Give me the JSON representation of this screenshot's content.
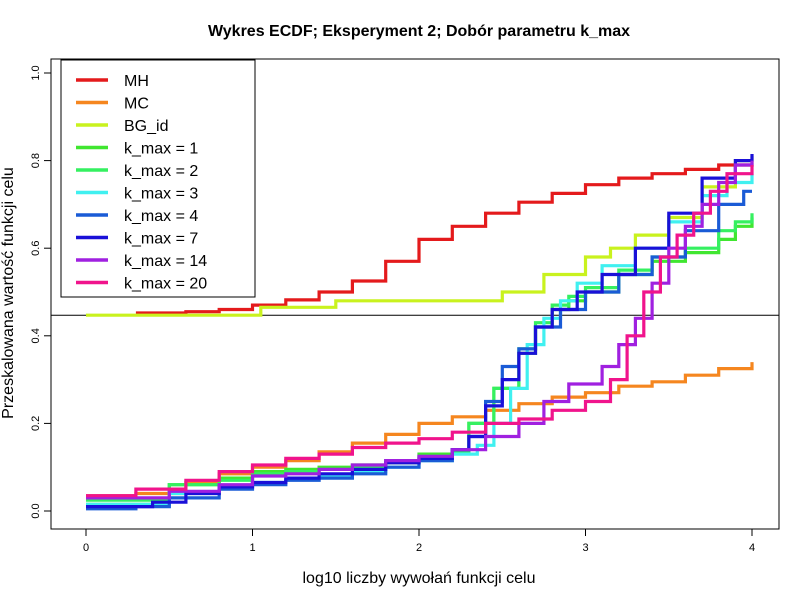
{
  "chart_data": {
    "type": "line",
    "step": true,
    "title": "Wykres ECDF; Eksperyment 2; Dobór parametru k_max",
    "xlabel": "log10 liczby wywołań funkcji celu",
    "ylabel": "Przeskalowana wartość funkcji celu",
    "xlim": [
      0,
      4
    ],
    "ylim": [
      0,
      1
    ],
    "x_ticks": [
      0,
      1,
      2,
      3,
      4
    ],
    "x_tick_labels": [
      "0",
      "1",
      "2",
      "3",
      "4"
    ],
    "y_ticks": [
      0,
      0.2,
      0.4,
      0.6,
      0.8,
      1
    ],
    "y_tick_labels": [
      "0.0",
      "0.2",
      "0.4",
      "0.6",
      "0.8",
      "1.0"
    ],
    "reference_line": {
      "orientation": "horizontal",
      "y": 0.447,
      "color": "#000000"
    },
    "legend": {
      "position": "top-left"
    },
    "series": [
      {
        "name": "MH",
        "color": "#e41a1c",
        "points": [
          [
            0.3,
            0.452
          ],
          [
            0.6,
            0.455
          ],
          [
            0.8,
            0.46
          ],
          [
            1.0,
            0.47
          ],
          [
            1.2,
            0.482
          ],
          [
            1.4,
            0.5
          ],
          [
            1.6,
            0.525
          ],
          [
            1.8,
            0.57
          ],
          [
            2.0,
            0.62
          ],
          [
            2.2,
            0.65
          ],
          [
            2.4,
            0.68
          ],
          [
            2.6,
            0.705
          ],
          [
            2.8,
            0.725
          ],
          [
            3.0,
            0.745
          ],
          [
            3.2,
            0.76
          ],
          [
            3.4,
            0.77
          ],
          [
            3.6,
            0.78
          ],
          [
            3.8,
            0.79
          ],
          [
            4.0,
            0.795
          ]
        ]
      },
      {
        "name": "MC",
        "color": "#f5861f",
        "points": [
          [
            0.0,
            0.035
          ],
          [
            0.3,
            0.04
          ],
          [
            0.6,
            0.065
          ],
          [
            0.8,
            0.085
          ],
          [
            1.0,
            0.1
          ],
          [
            1.2,
            0.115
          ],
          [
            1.4,
            0.135
          ],
          [
            1.6,
            0.155
          ],
          [
            1.8,
            0.175
          ],
          [
            2.0,
            0.2
          ],
          [
            2.2,
            0.215
          ],
          [
            2.4,
            0.23
          ],
          [
            2.6,
            0.245
          ],
          [
            2.8,
            0.26
          ],
          [
            3.0,
            0.27
          ],
          [
            3.2,
            0.285
          ],
          [
            3.4,
            0.295
          ],
          [
            3.6,
            0.31
          ],
          [
            3.8,
            0.325
          ],
          [
            4.0,
            0.34
          ]
        ]
      },
      {
        "name": "BG_id",
        "color": "#c9f21e",
        "points": [
          [
            0.0,
            0.447
          ],
          [
            1.05,
            0.447
          ],
          [
            1.05,
            0.465
          ],
          [
            1.5,
            0.465
          ],
          [
            1.5,
            0.48
          ],
          [
            2.5,
            0.48
          ],
          [
            2.5,
            0.5
          ],
          [
            2.75,
            0.5
          ],
          [
            2.75,
            0.54
          ],
          [
            3.0,
            0.54
          ],
          [
            3.0,
            0.58
          ],
          [
            3.15,
            0.6
          ],
          [
            3.3,
            0.63
          ],
          [
            3.5,
            0.67
          ],
          [
            3.7,
            0.74
          ],
          [
            3.9,
            0.8
          ],
          [
            4.0,
            0.81
          ]
        ]
      },
      {
        "name": "k_max = 1",
        "color": "#40e630",
        "points": [
          [
            0.0,
            0.015
          ],
          [
            0.5,
            0.06
          ],
          [
            0.8,
            0.075
          ],
          [
            1.0,
            0.09
          ],
          [
            1.2,
            0.095
          ],
          [
            1.4,
            0.1
          ],
          [
            1.6,
            0.105
          ],
          [
            1.8,
            0.11
          ],
          [
            2.0,
            0.13
          ],
          [
            2.2,
            0.14
          ],
          [
            2.3,
            0.145
          ],
          [
            2.3,
            0.2
          ],
          [
            2.45,
            0.28
          ],
          [
            2.6,
            0.36
          ],
          [
            2.7,
            0.42
          ],
          [
            2.8,
            0.46
          ],
          [
            2.9,
            0.48
          ],
          [
            3.0,
            0.5
          ],
          [
            3.2,
            0.54
          ],
          [
            3.4,
            0.57
          ],
          [
            3.6,
            0.59
          ],
          [
            3.8,
            0.62
          ],
          [
            3.9,
            0.65
          ],
          [
            4.0,
            0.67
          ]
        ]
      },
      {
        "name": "k_max = 2",
        "color": "#35f060",
        "points": [
          [
            0.0,
            0.025
          ],
          [
            0.5,
            0.06
          ],
          [
            0.8,
            0.07
          ],
          [
            1.0,
            0.085
          ],
          [
            1.2,
            0.09
          ],
          [
            1.4,
            0.095
          ],
          [
            1.6,
            0.1
          ],
          [
            1.8,
            0.115
          ],
          [
            2.0,
            0.125
          ],
          [
            2.2,
            0.135
          ],
          [
            2.3,
            0.14
          ],
          [
            2.3,
            0.2
          ],
          [
            2.45,
            0.28
          ],
          [
            2.6,
            0.37
          ],
          [
            2.7,
            0.43
          ],
          [
            2.8,
            0.47
          ],
          [
            2.9,
            0.49
          ],
          [
            3.0,
            0.51
          ],
          [
            3.2,
            0.55
          ],
          [
            3.4,
            0.58
          ],
          [
            3.6,
            0.6
          ],
          [
            3.8,
            0.64
          ],
          [
            3.9,
            0.66
          ],
          [
            4.0,
            0.68
          ]
        ]
      },
      {
        "name": "k_max = 3",
        "color": "#40f0f0",
        "points": [
          [
            0.0,
            0.015
          ],
          [
            0.5,
            0.04
          ],
          [
            0.8,
            0.055
          ],
          [
            1.0,
            0.065
          ],
          [
            1.2,
            0.075
          ],
          [
            1.4,
            0.08
          ],
          [
            1.6,
            0.09
          ],
          [
            1.8,
            0.1
          ],
          [
            2.0,
            0.115
          ],
          [
            2.2,
            0.13
          ],
          [
            2.35,
            0.15
          ],
          [
            2.45,
            0.2
          ],
          [
            2.55,
            0.28
          ],
          [
            2.65,
            0.38
          ],
          [
            2.75,
            0.44
          ],
          [
            2.85,
            0.48
          ],
          [
            2.95,
            0.52
          ],
          [
            3.1,
            0.56
          ],
          [
            3.3,
            0.6
          ],
          [
            3.5,
            0.66
          ],
          [
            3.7,
            0.72
          ],
          [
            3.85,
            0.75
          ],
          [
            4.0,
            0.77
          ]
        ]
      },
      {
        "name": "k_max = 4",
        "color": "#1a5bd6",
        "points": [
          [
            0.0,
            0.005
          ],
          [
            0.3,
            0.01
          ],
          [
            0.5,
            0.03
          ],
          [
            0.8,
            0.05
          ],
          [
            1.0,
            0.06
          ],
          [
            1.2,
            0.07
          ],
          [
            1.4,
            0.075
          ],
          [
            1.6,
            0.085
          ],
          [
            1.8,
            0.1
          ],
          [
            2.0,
            0.115
          ],
          [
            2.2,
            0.14
          ],
          [
            2.3,
            0.17
          ],
          [
            2.4,
            0.25
          ],
          [
            2.5,
            0.33
          ],
          [
            2.6,
            0.37
          ],
          [
            2.7,
            0.42
          ],
          [
            2.85,
            0.46
          ],
          [
            3.0,
            0.5
          ],
          [
            3.2,
            0.54
          ],
          [
            3.4,
            0.58
          ],
          [
            3.6,
            0.64
          ],
          [
            3.8,
            0.7
          ],
          [
            3.95,
            0.73
          ],
          [
            4.0,
            0.73
          ]
        ]
      },
      {
        "name": "k_max = 7",
        "color": "#1a10d8",
        "points": [
          [
            0.0,
            0.01
          ],
          [
            0.4,
            0.02
          ],
          [
            0.6,
            0.04
          ],
          [
            0.8,
            0.055
          ],
          [
            1.0,
            0.065
          ],
          [
            1.2,
            0.075
          ],
          [
            1.4,
            0.085
          ],
          [
            1.6,
            0.095
          ],
          [
            1.8,
            0.11
          ],
          [
            2.0,
            0.12
          ],
          [
            2.2,
            0.14
          ],
          [
            2.3,
            0.17
          ],
          [
            2.4,
            0.24
          ],
          [
            2.5,
            0.3
          ],
          [
            2.6,
            0.36
          ],
          [
            2.7,
            0.42
          ],
          [
            2.8,
            0.46
          ],
          [
            2.95,
            0.5
          ],
          [
            3.1,
            0.54
          ],
          [
            3.3,
            0.6
          ],
          [
            3.5,
            0.68
          ],
          [
            3.7,
            0.76
          ],
          [
            3.9,
            0.8
          ],
          [
            4.0,
            0.815
          ]
        ]
      },
      {
        "name": "k_max = 14",
        "color": "#a020e0",
        "points": [
          [
            0.0,
            0.03
          ],
          [
            0.5,
            0.045
          ],
          [
            0.8,
            0.06
          ],
          [
            1.0,
            0.08
          ],
          [
            1.2,
            0.085
          ],
          [
            1.4,
            0.095
          ],
          [
            1.6,
            0.105
          ],
          [
            1.8,
            0.115
          ],
          [
            2.0,
            0.125
          ],
          [
            2.2,
            0.14
          ],
          [
            2.4,
            0.17
          ],
          [
            2.6,
            0.2
          ],
          [
            2.75,
            0.25
          ],
          [
            2.9,
            0.29
          ],
          [
            3.1,
            0.33
          ],
          [
            3.2,
            0.38
          ],
          [
            3.3,
            0.44
          ],
          [
            3.4,
            0.52
          ],
          [
            3.5,
            0.6
          ],
          [
            3.6,
            0.65
          ],
          [
            3.7,
            0.7
          ],
          [
            3.8,
            0.75
          ],
          [
            3.9,
            0.79
          ],
          [
            4.0,
            0.8
          ]
        ]
      },
      {
        "name": "k_max = 20",
        "color": "#f0148c",
        "points": [
          [
            0.0,
            0.035
          ],
          [
            0.3,
            0.05
          ],
          [
            0.6,
            0.07
          ],
          [
            0.8,
            0.09
          ],
          [
            1.0,
            0.105
          ],
          [
            1.2,
            0.12
          ],
          [
            1.4,
            0.13
          ],
          [
            1.6,
            0.145
          ],
          [
            1.8,
            0.155
          ],
          [
            2.0,
            0.165
          ],
          [
            2.2,
            0.18
          ],
          [
            2.4,
            0.2
          ],
          [
            2.6,
            0.21
          ],
          [
            2.8,
            0.23
          ],
          [
            3.0,
            0.25
          ],
          [
            3.15,
            0.3
          ],
          [
            3.25,
            0.4
          ],
          [
            3.35,
            0.5
          ],
          [
            3.45,
            0.58
          ],
          [
            3.55,
            0.63
          ],
          [
            3.65,
            0.68
          ],
          [
            3.75,
            0.73
          ],
          [
            3.85,
            0.77
          ],
          [
            4.0,
            0.79
          ]
        ]
      }
    ]
  }
}
